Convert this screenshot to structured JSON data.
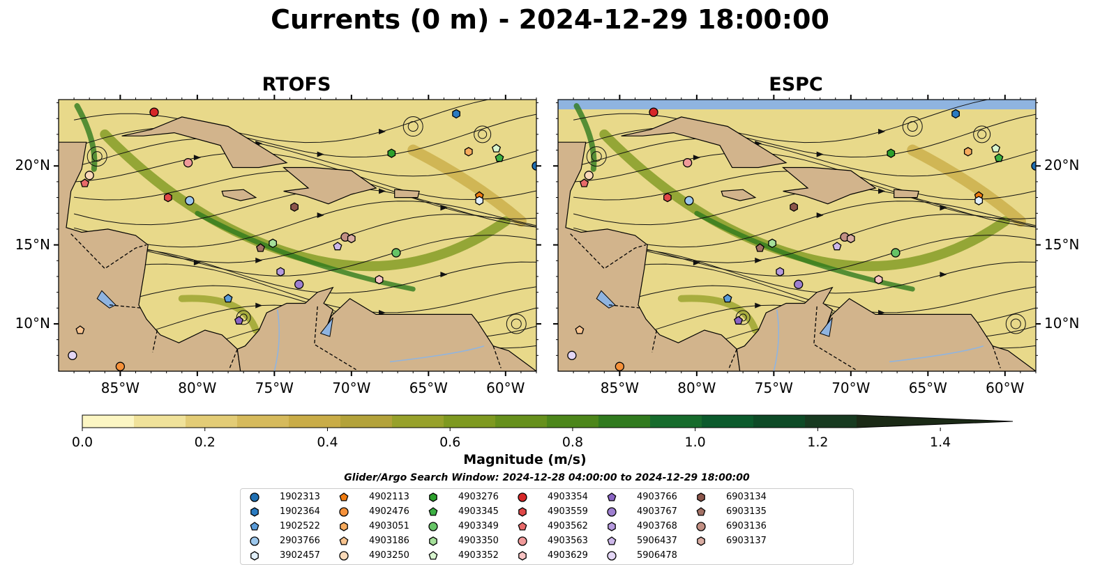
{
  "title": "Currents (0 m) - 2024-12-29 18:00:00",
  "panels": [
    {
      "id": "rtofs",
      "title": "RTOFS"
    },
    {
      "id": "espc",
      "title": "ESPC"
    }
  ],
  "map": {
    "lon_range": [
      -89,
      -58
    ],
    "lat_range": [
      7,
      24.2
    ],
    "lon_ticks": [
      "85°W",
      "80°W",
      "75°W",
      "70°W",
      "65°W",
      "60°W"
    ],
    "lat_ticks": [
      "10°N",
      "15°N",
      "20°N"
    ],
    "land_color": "#d2b48c",
    "ocean_base_color": "#e8d98a",
    "lake_color": "#8fb4e0"
  },
  "colorbar": {
    "label": "Magnitude (m/s)",
    "ticks": [
      "0.0",
      "0.2",
      "0.4",
      "0.6",
      "0.8",
      "1.0",
      "1.2",
      "1.4"
    ],
    "range": [
      0,
      1.5
    ],
    "colors": [
      "#fcf6c3",
      "#f0e29a",
      "#e3cc76",
      "#d6ba5c",
      "#c9ac47",
      "#b3a23a",
      "#97a12b",
      "#7e9920",
      "#66901c",
      "#4c861a",
      "#307a1e",
      "#166b2c",
      "#0b5a2c",
      "#0d4a26",
      "#173a20",
      "#1b2a16"
    ]
  },
  "search_window": "Glider/Argo Search Window: 2024-12-28 04:00:00 to 2024-12-29 18:00:00",
  "legend": [
    {
      "id": "1902313",
      "marker": "circle",
      "color": "#1f6fb2"
    },
    {
      "id": "1902364",
      "marker": "hexagon",
      "color": "#2a7bc1"
    },
    {
      "id": "1902522",
      "marker": "pentagon",
      "color": "#5a9bd8"
    },
    {
      "id": "2903766",
      "marker": "circle",
      "color": "#9cc7ec"
    },
    {
      "id": "3902457",
      "marker": "hexagon",
      "color": "#e2f0fb"
    },
    {
      "id": "4902113",
      "marker": "pentagon",
      "color": "#f07c10"
    },
    {
      "id": "4902476",
      "marker": "circle",
      "color": "#f5913a"
    },
    {
      "id": "4903051",
      "marker": "hexagon",
      "color": "#f7ab5e"
    },
    {
      "id": "4903186",
      "marker": "pentagon",
      "color": "#f8c48f"
    },
    {
      "id": "4903250",
      "marker": "circle",
      "color": "#fad9b8"
    },
    {
      "id": "4903276",
      "marker": "hexagon",
      "color": "#2ca02c"
    },
    {
      "id": "4903345",
      "marker": "pentagon",
      "color": "#3cb043"
    },
    {
      "id": "4903349",
      "marker": "circle",
      "color": "#66c466"
    },
    {
      "id": "4903350",
      "marker": "hexagon",
      "color": "#a5e09a"
    },
    {
      "id": "4903352",
      "marker": "pentagon",
      "color": "#d8f5cf"
    },
    {
      "id": "4903354",
      "marker": "circle",
      "color": "#d62728"
    },
    {
      "id": "4903559",
      "marker": "hexagon",
      "color": "#e04848"
    },
    {
      "id": "4903562",
      "marker": "pentagon",
      "color": "#e86a6a"
    },
    {
      "id": "4903563",
      "marker": "circle",
      "color": "#f09a9a"
    },
    {
      "id": "4903629",
      "marker": "hexagon",
      "color": "#f8c3c3"
    },
    {
      "id": "4903766",
      "marker": "pentagon",
      "color": "#8a64c4"
    },
    {
      "id": "4903767",
      "marker": "circle",
      "color": "#9e7fd0"
    },
    {
      "id": "4903768",
      "marker": "hexagon",
      "color": "#b69ade"
    },
    {
      "id": "5906437",
      "marker": "pentagon",
      "color": "#cdb8ea"
    },
    {
      "id": "5906478",
      "marker": "circle",
      "color": "#e3d6f5"
    },
    {
      "id": "6903134",
      "marker": "hexagon",
      "color": "#8c564b"
    },
    {
      "id": "6903135",
      "marker": "pentagon",
      "color": "#a47266"
    },
    {
      "id": "6903136",
      "marker": "circle",
      "color": "#c29084"
    },
    {
      "id": "6903137",
      "marker": "hexagon",
      "color": "#d9ada3"
    }
  ],
  "floats": [
    {
      "id": "4903354",
      "lon": -82.8,
      "lat": 23.4
    },
    {
      "id": "1902364",
      "lon": -63.2,
      "lat": 23.3
    },
    {
      "id": "4903051",
      "lon": -62.4,
      "lat": 20.9
    },
    {
      "id": "4903352",
      "lon": -60.6,
      "lat": 21.1
    },
    {
      "id": "4903345",
      "lon": -60.4,
      "lat": 20.5
    },
    {
      "id": "1902313",
      "lon": -58.0,
      "lat": 20.0
    },
    {
      "id": "4903276",
      "lon": -67.4,
      "lat": 20.8
    },
    {
      "id": "4903563",
      "lon": -80.6,
      "lat": 20.2
    },
    {
      "id": "4903250",
      "lon": -87.0,
      "lat": 19.4
    },
    {
      "id": "4903562",
      "lon": -87.3,
      "lat": 18.9
    },
    {
      "id": "4903559",
      "lon": -81.9,
      "lat": 18.0
    },
    {
      "id": "2903766",
      "lon": -80.5,
      "lat": 17.8
    },
    {
      "id": "4902113",
      "lon": -61.7,
      "lat": 18.1
    },
    {
      "id": "3902457",
      "lon": -61.7,
      "lat": 17.8
    },
    {
      "id": "6903134",
      "lon": -73.7,
      "lat": 17.4
    },
    {
      "id": "6903135",
      "lon": -75.9,
      "lat": 14.8
    },
    {
      "id": "4903350",
      "lon": -75.1,
      "lat": 15.1
    },
    {
      "id": "6903136",
      "lon": -70.4,
      "lat": 15.5
    },
    {
      "id": "6903137",
      "lon": -70.0,
      "lat": 15.4
    },
    {
      "id": "5906437",
      "lon": -70.9,
      "lat": 14.9
    },
    {
      "id": "4903349",
      "lon": -67.1,
      "lat": 14.5
    },
    {
      "id": "4903768",
      "lon": -74.6,
      "lat": 13.3
    },
    {
      "id": "4903767",
      "lon": -73.4,
      "lat": 12.5
    },
    {
      "id": "4903629",
      "lon": -68.2,
      "lat": 12.8
    },
    {
      "id": "1902522",
      "lon": -78.0,
      "lat": 11.6
    },
    {
      "id": "4903766",
      "lon": -77.3,
      "lat": 10.2
    },
    {
      "id": "4903186",
      "lon": -87.6,
      "lat": 9.6
    },
    {
      "id": "5906478",
      "lon": -88.1,
      "lat": 8.0
    },
    {
      "id": "4902476",
      "lon": -85.0,
      "lat": 7.3
    }
  ]
}
